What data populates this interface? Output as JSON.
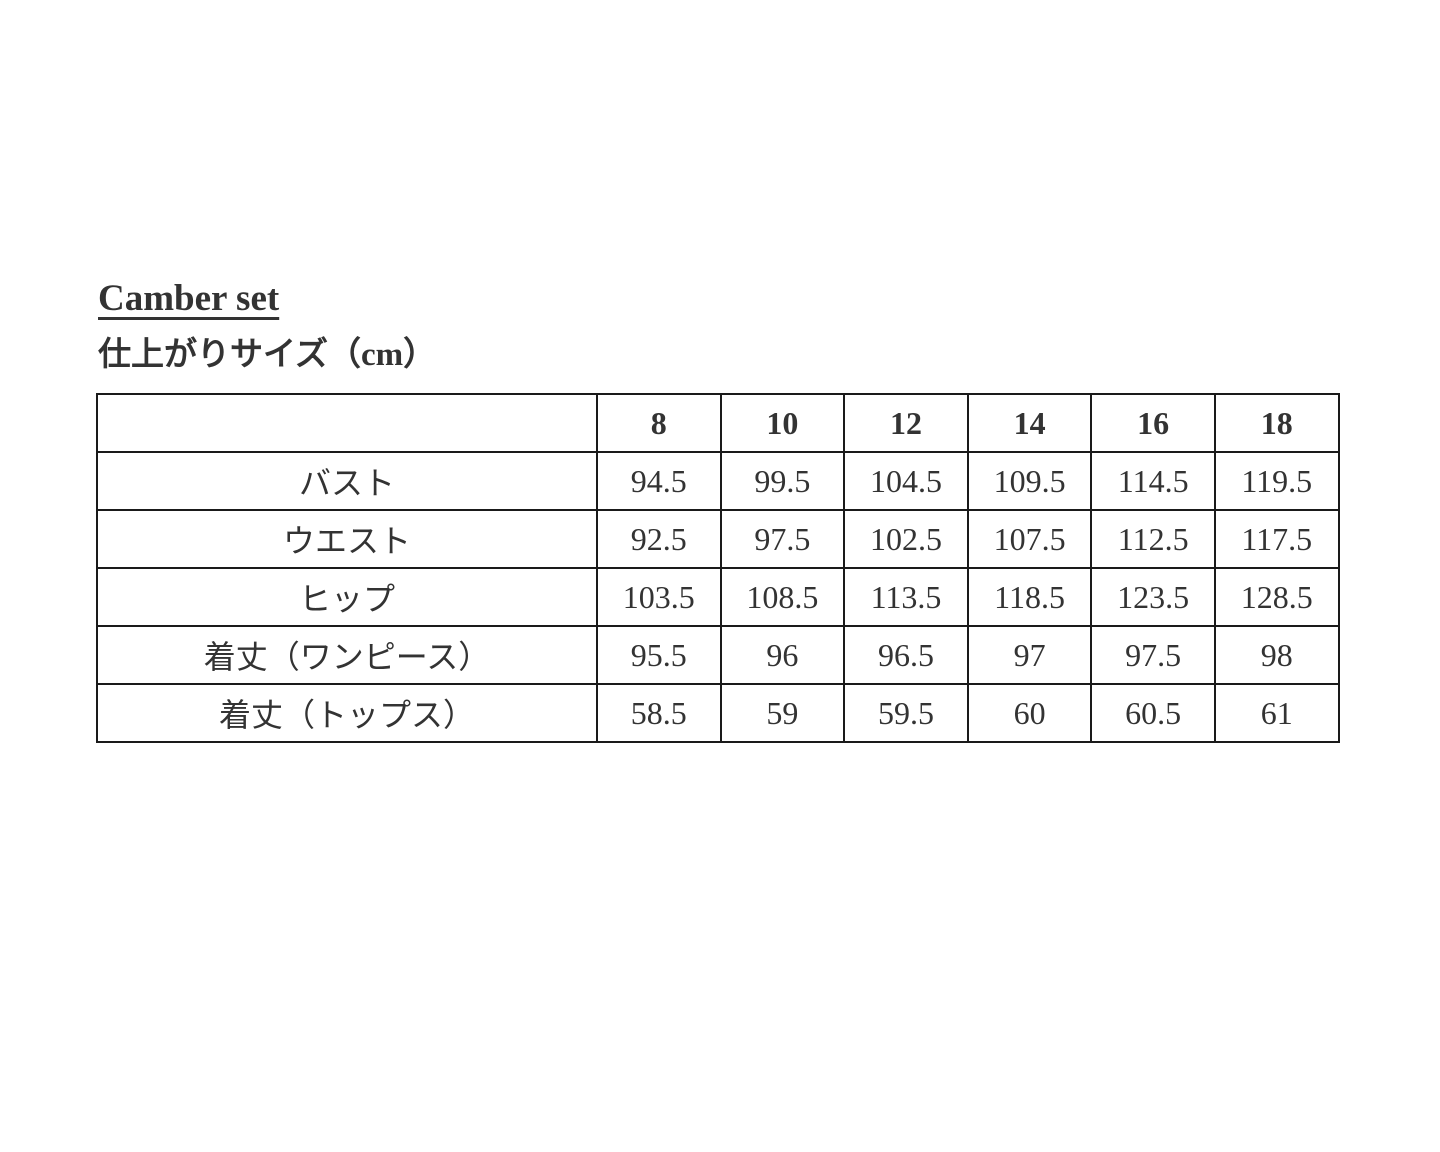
{
  "page": {
    "title": "Camber set",
    "subtitle": "仕上がりサイズ（cm）"
  },
  "table": {
    "header": [
      "",
      "8",
      "10",
      "12",
      "14",
      "16",
      "18"
    ],
    "rows": [
      {
        "label": "バスト",
        "values": [
          "94.5",
          "99.5",
          "104.5",
          "109.5",
          "114.5",
          "119.5"
        ]
      },
      {
        "label": "ウエスト",
        "values": [
          "92.5",
          "97.5",
          "102.5",
          "107.5",
          "112.5",
          "117.5"
        ]
      },
      {
        "label": "ヒップ",
        "values": [
          "103.5",
          "108.5",
          "113.5",
          "118.5",
          "123.5",
          "128.5"
        ]
      },
      {
        "label": "着丈（ワンピース）",
        "values": [
          "95.5",
          "96",
          "96.5",
          "97",
          "97.5",
          "98"
        ]
      },
      {
        "label": "着丈（トップス）",
        "values": [
          "58.5",
          "59",
          "59.5",
          "60",
          "60.5",
          "61"
        ]
      }
    ]
  },
  "colors": {
    "text": "#333333",
    "border": "#1a1a1a",
    "background": "#ffffff"
  }
}
